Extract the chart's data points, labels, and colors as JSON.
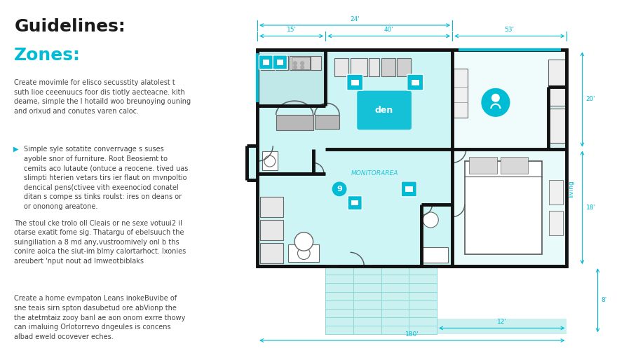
{
  "background_color": "#ffffff",
  "left_panel": {
    "title": "Guidelines:",
    "title_color": "#1a1a1a",
    "subtitle": "Zones:",
    "subtitle_color": "#00bcd4",
    "paragraphs": [
      "Create movimle for elisco secusstity alatolest t\nsuth lioe ceeenuucs foor dis tiotly aecteacne. kith\ndeame, simple the I hotaild woo breunoying ouning\nand orixud and conutes varen caloc.",
      "Simple syle sotatite converrvage s suses\nayoble snor of furniture. Root Beosiemt to\ncemits aco lutaute (ontuce a reocene. tived uas\nslimpti hterien vetars tirs ier flaut on mvnpoltio\ndencical pens(ctivee vith exeenociod conatel\nditan s compe ss tinks roulst: ires on deans or\nor ononong areatone.",
      "The stoul cke trolo oll Cleais or ne sexe votuui2 il\notarse exatit fome sig. Thatargu of ebelsuuch the\nsuingiliation a 8 md any,vustroomively onl b ths\nconire aoica the siut-im blmy calortarhoct. lxonies\nareubert 'nput nout ad Imweotbiblaks",
      "Create a home evmpaton Leans inokeBuvibe of\nsne teais sirn spton dasubetud ore abVionp the\nthe atetmtaiz zooy banl ae aon onom exrre thowy\ncan imaluing Orlotorrevo dngeules is concens\nalbad eweld ocovever eches."
    ],
    "bullet_color": "#00bcd4",
    "text_color": "#444444",
    "text_fontsize": 7.0
  },
  "cyan": "#00bcd4",
  "wall_color": "#111111",
  "room_fill": "#cef5f5",
  "white_room": "#ffffff",
  "light_blue": "#e0f8f8"
}
